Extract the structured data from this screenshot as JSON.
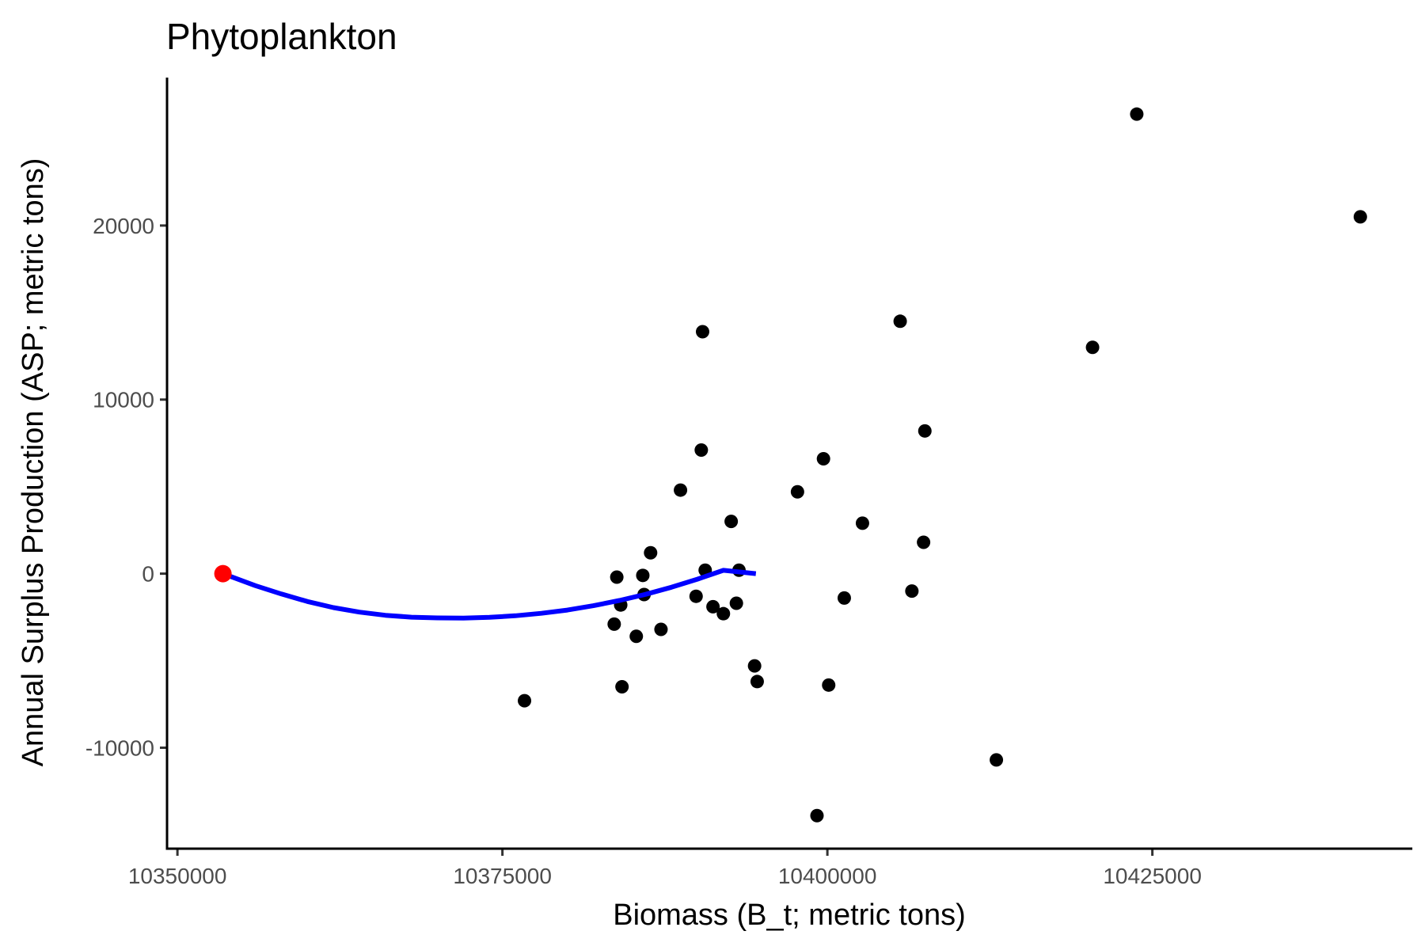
{
  "chart_data": {
    "type": "scatter",
    "title": "Phytoplankton",
    "xlabel": "Biomass (B_t; metric tons)",
    "ylabel": "Annual Surplus Production (ASP; metric tons)",
    "xlim": [
      10349200,
      10445000
    ],
    "ylim": [
      -15800,
      28500
    ],
    "xticks": [
      10350000,
      10375000,
      10400000,
      10425000
    ],
    "xtick_labels": [
      "10350000",
      "10375000",
      "10400000",
      "10425000"
    ],
    "yticks": [
      -10000,
      0,
      10000,
      20000
    ],
    "ytick_labels": [
      "-10000",
      "0",
      "10000",
      "20000"
    ],
    "grid": false,
    "colors": {
      "points": "#000000",
      "curve": "#0000ff",
      "start_point": "#ff0000"
    },
    "series": [
      {
        "type": "scatter",
        "points": [
          [
            10376700,
            -7300
          ],
          [
            10383600,
            -2900
          ],
          [
            10383800,
            -200
          ],
          [
            10384100,
            -1800
          ],
          [
            10384200,
            -6500
          ],
          [
            10385300,
            -3600
          ],
          [
            10385800,
            -100
          ],
          [
            10385900,
            -1200
          ],
          [
            10386400,
            1200
          ],
          [
            10387200,
            -3200
          ],
          [
            10388700,
            4800
          ],
          [
            10389900,
            -1300
          ],
          [
            10390300,
            7100
          ],
          [
            10390400,
            13900
          ],
          [
            10390600,
            200
          ],
          [
            10391200,
            -1900
          ],
          [
            10392000,
            -2300
          ],
          [
            10392600,
            3000
          ],
          [
            10393000,
            -1700
          ],
          [
            10393200,
            200
          ],
          [
            10394400,
            -5300
          ],
          [
            10394600,
            -6200
          ],
          [
            10397700,
            4700
          ],
          [
            10399200,
            -13900
          ],
          [
            10399700,
            6600
          ],
          [
            10400100,
            -6400
          ],
          [
            10401300,
            -1400
          ],
          [
            10402700,
            2900
          ],
          [
            10405600,
            14500
          ],
          [
            10406500,
            -1000
          ],
          [
            10407400,
            1800
          ],
          [
            10407500,
            8200
          ],
          [
            10413000,
            -10700
          ],
          [
            10420400,
            13000
          ],
          [
            10423800,
            26400
          ],
          [
            10441000,
            20500
          ]
        ]
      },
      {
        "type": "line",
        "points": [
          [
            10353500,
            0
          ],
          [
            10356000,
            -690
          ],
          [
            10358000,
            -1170
          ],
          [
            10360000,
            -1600
          ],
          [
            10362000,
            -1950
          ],
          [
            10364000,
            -2210
          ],
          [
            10366000,
            -2390
          ],
          [
            10368000,
            -2500
          ],
          [
            10370000,
            -2540
          ],
          [
            10372000,
            -2550
          ],
          [
            10374000,
            -2510
          ],
          [
            10376000,
            -2420
          ],
          [
            10378000,
            -2280
          ],
          [
            10380000,
            -2090
          ],
          [
            10382000,
            -1840
          ],
          [
            10384000,
            -1540
          ],
          [
            10386000,
            -1190
          ],
          [
            10388000,
            -780
          ],
          [
            10390000,
            -320
          ],
          [
            10392000,
            190
          ],
          [
            10394500,
            0
          ]
        ]
      },
      {
        "type": "scatter",
        "points": [
          [
            10353500,
            0
          ]
        ]
      }
    ]
  }
}
